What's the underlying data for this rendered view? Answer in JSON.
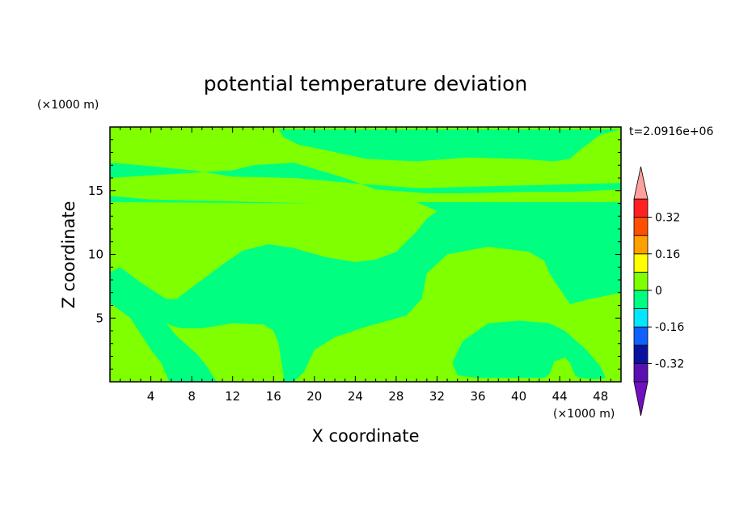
{
  "chart_data": {
    "type": "heatmap",
    "title": "potential temperature deviation",
    "xlabel": "X coordinate",
    "ylabel": "Z coordinate",
    "x_unit": "(×1000 m)",
    "y_unit": "(×1000 m)",
    "time_label": "t=2.0916e+06",
    "xlim": [
      0,
      50
    ],
    "ylim": [
      0,
      20
    ],
    "x_ticks": [
      4,
      8,
      12,
      16,
      20,
      24,
      28,
      32,
      36,
      40,
      44,
      48
    ],
    "y_ticks": [
      5,
      10,
      15
    ],
    "colorbar": {
      "levels": [
        -0.4,
        -0.32,
        -0.24,
        -0.16,
        -0.08,
        0,
        0.08,
        0.16,
        0.24,
        0.32,
        0.4
      ],
      "labeled_values": [
        "-0.32",
        "-0.16",
        "0",
        "0.16",
        "0.32"
      ],
      "colors": [
        "#5a10b0",
        "#0a10a0",
        "#1060ff",
        "#00e8ff",
        "#00ff80",
        "#80ff00",
        "#ffff00",
        "#ffa000",
        "#ff5000",
        "#ff2020"
      ],
      "under_color": "#7010c0",
      "over_color": "#ffa0a0"
    },
    "field": {
      "background_band": "0 to 0.08",
      "background_color": "#80ff00",
      "regions": [
        {
          "level": "-0.08 to 0",
          "color": "#00ff80",
          "outline": [
            [
              0,
              19.8
            ],
            [
              50,
              19.8
            ],
            [
              48,
              19.4
            ],
            [
              46,
              18.2
            ],
            [
              45,
              17.5
            ],
            [
              43.5,
              17.3
            ],
            [
              40,
              17.5
            ],
            [
              35,
              17.6
            ],
            [
              30,
              17.3
            ],
            [
              25,
              17.5
            ],
            [
              21,
              18.2
            ],
            [
              18.5,
              18.6
            ],
            [
              17,
              19.2
            ],
            [
              16.5,
              19.8
            ]
          ]
        },
        {
          "level": "-0.08 to 0",
          "color": "#00ff80",
          "outline": [
            [
              0,
              17.2
            ],
            [
              3,
              17.0
            ],
            [
              8,
              16.6
            ],
            [
              12,
              16.1
            ],
            [
              18,
              16.0
            ],
            [
              25,
              15.5
            ],
            [
              30,
              15.2
            ],
            [
              40,
              15.4
            ],
            [
              50,
              15.6
            ],
            [
              50,
              15.1
            ],
            [
              45,
              14.9
            ],
            [
              40,
              14.9
            ],
            [
              35,
              14.8
            ],
            [
              31,
              14.8
            ],
            [
              26,
              15.1
            ],
            [
              23,
              16.0
            ],
            [
              18,
              17.2
            ],
            [
              14,
              17.0
            ],
            [
              12,
              16.6
            ],
            [
              6,
              16.3
            ],
            [
              0,
              16.0
            ]
          ]
        },
        {
          "level": "-0.08 to 0",
          "color": "#00ff80",
          "outline": [
            [
              0,
              14.6
            ],
            [
              4,
              14.3
            ],
            [
              10,
              14.2
            ],
            [
              20,
              14.0
            ],
            [
              30,
              14.1
            ],
            [
              40,
              14.1
            ],
            [
              50,
              14.1
            ],
            [
              50,
              12.0
            ],
            [
              50,
              7.0
            ],
            [
              47,
              6.5
            ],
            [
              45,
              6.1
            ],
            [
              43,
              8.5
            ],
            [
              42.5,
              9.5
            ],
            [
              41,
              10.2
            ],
            [
              37,
              10.6
            ],
            [
              33,
              10.0
            ],
            [
              31,
              8.5
            ],
            [
              30.5,
              6.5
            ],
            [
              29,
              5.2
            ],
            [
              25,
              4.3
            ],
            [
              22,
              3.5
            ],
            [
              20,
              2.5
            ],
            [
              19,
              0.8
            ],
            [
              18,
              0
            ],
            [
              17,
              0
            ],
            [
              17,
              0.3
            ],
            [
              16.5,
              3.0
            ],
            [
              16,
              4.0
            ],
            [
              15,
              4.5
            ],
            [
              12,
              4.6
            ],
            [
              9,
              4.2
            ],
            [
              7,
              4.2
            ],
            [
              6,
              4.4
            ],
            [
              5.5,
              4.6
            ],
            [
              6.5,
              3.6
            ],
            [
              8.5,
              2.2
            ],
            [
              9.5,
              1.2
            ],
            [
              10.2,
              0.3
            ],
            [
              10.5,
              0
            ],
            [
              5.8,
              0
            ],
            [
              5.0,
              1.5
            ],
            [
              4,
              2.5
            ],
            [
              2,
              5
            ],
            [
              0,
              6.2
            ],
            [
              0,
              8.6
            ],
            [
              1,
              9.0
            ],
            [
              3,
              7.8
            ],
            [
              5.5,
              6.5
            ],
            [
              6.5,
              6.5
            ],
            [
              8,
              7.4
            ],
            [
              11,
              9.2
            ],
            [
              13,
              10.3
            ],
            [
              15.5,
              10.8
            ],
            [
              18,
              10.5
            ],
            [
              21,
              9.8
            ],
            [
              24,
              9.4
            ],
            [
              26,
              9.6
            ],
            [
              28,
              10.2
            ],
            [
              30,
              11.8
            ],
            [
              31,
              12.8
            ],
            [
              32,
              13.4
            ],
            [
              30,
              14.1
            ],
            [
              20,
              14.0
            ],
            [
              0,
              14.1
            ]
          ]
        },
        {
          "level": "-0.08 to 0",
          "color": "#00ff80",
          "outline": [
            [
              33.5,
              1.5
            ],
            [
              34.5,
              3.2
            ],
            [
              37,
              4.6
            ],
            [
              40,
              4.8
            ],
            [
              43,
              4.6
            ],
            [
              44.5,
              4.0
            ],
            [
              46.5,
              2.6
            ],
            [
              48,
              1.2
            ],
            [
              48.5,
              0.3
            ],
            [
              47.5,
              0.2
            ],
            [
              46,
              0.3
            ],
            [
              45.5,
              0.5
            ],
            [
              45,
              1.5
            ],
            [
              44.5,
              1.9
            ],
            [
              43.5,
              1.6
            ],
            [
              43,
              0.6
            ],
            [
              42.5,
              0.3
            ],
            [
              40,
              0.3
            ],
            [
              36,
              0.3
            ],
            [
              34,
              0.5
            ]
          ]
        }
      ]
    }
  }
}
